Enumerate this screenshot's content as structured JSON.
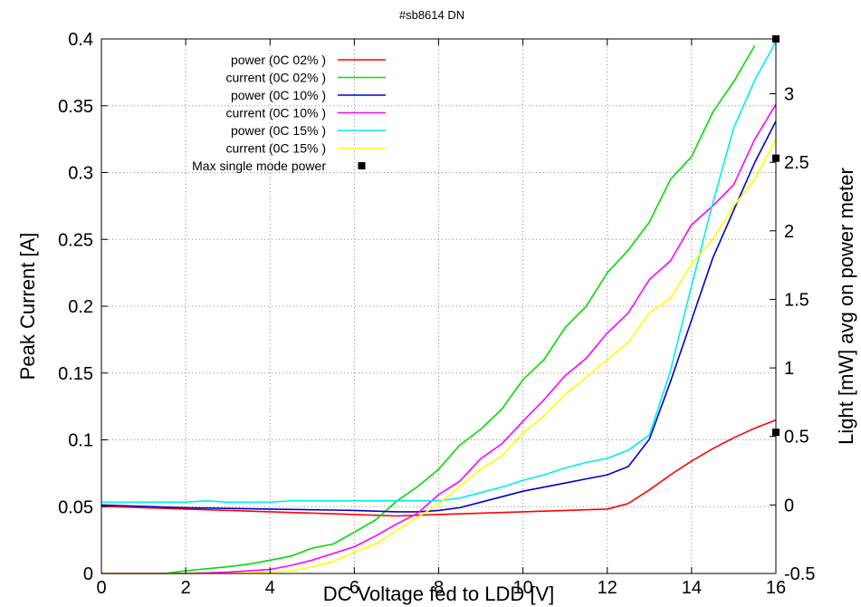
{
  "chart_data": {
    "type": "line",
    "title": "#sb8614 DN",
    "xlabel": "DC Voltage fed to LDD [V]",
    "ylabel": "Peak Current [A]",
    "y2label": "Light [mW] avg on power meter",
    "xlim": [
      0,
      16
    ],
    "ylim": [
      0,
      0.4
    ],
    "y2lim": [
      -0.5,
      3.4
    ],
    "grid": true,
    "legend_position": "top-left",
    "x_ticks": [
      "0",
      "2",
      "4",
      "6",
      "8",
      "10",
      "12",
      "14",
      "16"
    ],
    "y_ticks": [
      "0",
      "0.05",
      "0.1",
      "0.15",
      "0.2",
      "0.25",
      "0.3",
      "0.35",
      "0.4"
    ],
    "y2_ticks": [
      "-0.5",
      "0",
      "0.5",
      "1",
      "1.5",
      "2",
      "2.5",
      "3"
    ],
    "series": [
      {
        "name": "power (0C 02% )",
        "color": "#ff0000",
        "axis": "y2",
        "x": [
          0,
          2,
          4,
          6,
          7,
          8,
          9,
          10,
          11,
          12,
          12.5,
          13,
          13.5,
          14,
          14.5,
          15,
          15.5,
          16
        ],
        "values": [
          -0.01,
          -0.03,
          -0.05,
          -0.07,
          -0.08,
          -0.07,
          -0.06,
          -0.05,
          -0.04,
          -0.03,
          0.01,
          0.11,
          0.22,
          0.32,
          0.41,
          0.49,
          0.56,
          0.62
        ]
      },
      {
        "name": "current (0C 02% )",
        "color": "#00dd00",
        "axis": "y",
        "x": [
          0,
          1.5,
          2,
          3,
          3.5,
          4,
          4.5,
          5,
          5.5,
          6,
          6.5,
          7,
          7.5,
          8,
          8.5,
          9,
          9.5,
          10,
          10.5,
          11,
          11.5,
          12,
          12.5,
          13,
          13.5,
          14,
          14.5,
          15,
          15.5
        ],
        "values": [
          0,
          0,
          0.002,
          0.005,
          0.007,
          0.01,
          0.013,
          0.019,
          0.022,
          0.031,
          0.04,
          0.054,
          0.065,
          0.078,
          0.096,
          0.108,
          0.123,
          0.145,
          0.16,
          0.184,
          0.2,
          0.225,
          0.242,
          0.263,
          0.295,
          0.312,
          0.345,
          0.368,
          0.395
        ]
      },
      {
        "name": "power (0C 10% )",
        "color": "#0000cc",
        "axis": "y2",
        "x": [
          0,
          2,
          4,
          6,
          7,
          7.5,
          8,
          8.5,
          9,
          9.5,
          10,
          10.5,
          11,
          11.5,
          12,
          12.5,
          13,
          13.5,
          14,
          14.5,
          15,
          15.5,
          16
        ],
        "values": [
          0.0,
          -0.02,
          -0.03,
          -0.04,
          -0.05,
          -0.05,
          -0.04,
          -0.02,
          0.02,
          0.06,
          0.1,
          0.13,
          0.16,
          0.19,
          0.22,
          0.28,
          0.48,
          0.9,
          1.35,
          1.8,
          2.15,
          2.5,
          2.8
        ]
      },
      {
        "name": "current (0C 10% )",
        "color": "#ff00ff",
        "axis": "y",
        "x": [
          0,
          1,
          2,
          3,
          4,
          4.5,
          5,
          5.5,
          6,
          6.5,
          7,
          7.5,
          8,
          8.5,
          9,
          9.5,
          10,
          10.5,
          11,
          11.5,
          12,
          12.5,
          13,
          13.5,
          14,
          14.5,
          15,
          15.5,
          16
        ],
        "values": [
          0,
          0,
          0,
          0.001,
          0.003,
          0.006,
          0.01,
          0.015,
          0.02,
          0.028,
          0.037,
          0.045,
          0.059,
          0.069,
          0.086,
          0.097,
          0.114,
          0.13,
          0.148,
          0.161,
          0.18,
          0.195,
          0.22,
          0.234,
          0.261,
          0.275,
          0.291,
          0.325,
          0.351
        ]
      },
      {
        "name": "power (0C 15% )",
        "color": "#00eeee",
        "axis": "y2",
        "x": [
          0,
          2,
          2.5,
          3,
          4,
          4.5,
          5,
          6,
          7,
          8,
          8.5,
          9,
          9.5,
          10,
          10.5,
          11,
          11.5,
          12,
          12.5,
          13,
          13.5,
          14,
          14.5,
          15,
          15.5,
          16
        ],
        "values": [
          0.02,
          0.02,
          0.03,
          0.02,
          0.02,
          0.03,
          0.03,
          0.03,
          0.03,
          0.03,
          0.05,
          0.09,
          0.13,
          0.18,
          0.22,
          0.27,
          0.31,
          0.34,
          0.4,
          0.51,
          0.98,
          1.6,
          2.2,
          2.75,
          3.1,
          3.38
        ]
      },
      {
        "name": "current (0C 15% )",
        "color": "#ffff00",
        "axis": "y",
        "x": [
          0,
          1,
          2,
          3,
          4,
          4.5,
          5,
          5.5,
          6,
          6.5,
          7,
          7.5,
          8,
          8.5,
          9,
          9.5,
          10,
          10.5,
          11,
          11.5,
          12,
          12.5,
          13,
          13.5,
          14,
          14.5,
          15,
          15.5,
          16
        ],
        "values": [
          0,
          0,
          0,
          0,
          0.001,
          0.002,
          0.005,
          0.009,
          0.016,
          0.022,
          0.032,
          0.042,
          0.052,
          0.065,
          0.078,
          0.088,
          0.105,
          0.118,
          0.134,
          0.147,
          0.16,
          0.173,
          0.195,
          0.206,
          0.232,
          0.25,
          0.275,
          0.295,
          0.325
        ]
      },
      {
        "name": "Max single mode power",
        "color": "#000000",
        "axis": "y2",
        "marker": "square",
        "x": [
          16,
          16,
          16
        ],
        "values": [
          0.53,
          2.53,
          3.4
        ]
      }
    ]
  }
}
